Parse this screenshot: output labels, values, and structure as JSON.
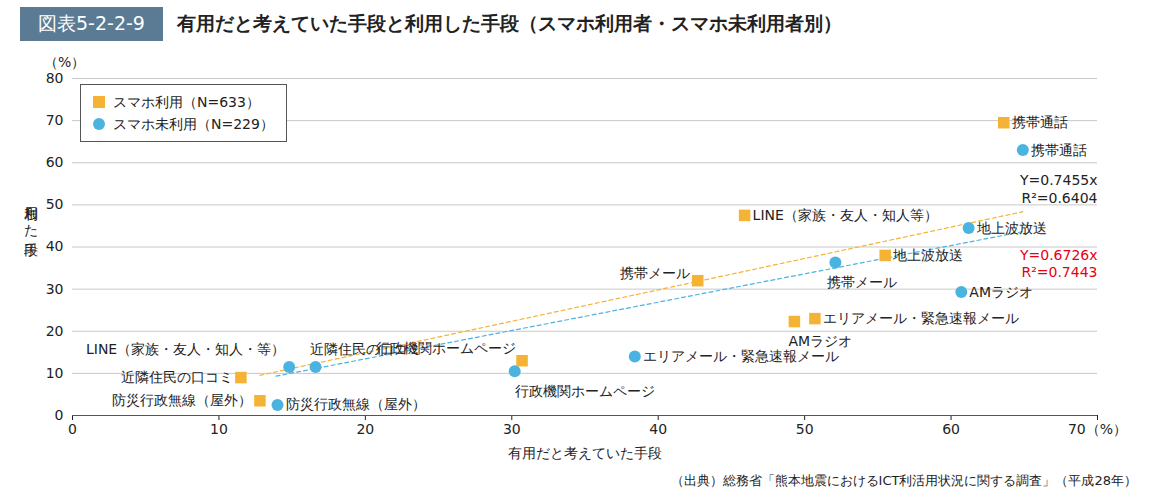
{
  "chart_data": {
    "type": "scatter",
    "figure_number": "図表5-2-2-9",
    "title": "有用だと考えていた手段と利用した手段（スマホ利用者・スマホ未利用者別）",
    "source": "（出典）総務省「熊本地震におけるICT利活用状況に関する調査」（平成28年）",
    "x_label": "有用だと考えていた手段",
    "y_label": "利用した手段",
    "y_unit_label": "（%）",
    "xlim": [
      0,
      70
    ],
    "xticks": [
      0,
      10,
      20,
      30,
      40,
      50,
      60,
      {
        "value": 70,
        "label": "70（%）"
      }
    ],
    "ylim": [
      0,
      80
    ],
    "yticks": [
      0,
      10,
      20,
      30,
      40,
      50,
      60,
      70,
      80
    ],
    "grid": true,
    "legend": "top-left",
    "series": [
      {
        "name": "スマホ利用（N=633）",
        "color": "#f5b335",
        "marker": "square",
        "labels": [
          "携帯通話",
          "LINE（家族・友人・知人等）",
          "地上波放送",
          "携帯メール",
          "エリアメール・緊急速報メール",
          "AMラジオ",
          "行政機関ホームページ",
          "近隣住民の口コミ",
          "防災行政無線（屋外）"
        ],
        "x": [
          63.6,
          45.9,
          55.5,
          42.7,
          50.7,
          49.3,
          30.7,
          11.5,
          12.8
        ],
        "values": [
          69.5,
          47.5,
          38.0,
          32.0,
          23.0,
          22.3,
          13.0,
          9.0,
          3.5
        ],
        "trendline": {
          "slope": 0.7455,
          "x_range": [
            12.8,
            64.9
          ],
          "equation": "Y=0.7455x",
          "r2": "R²=0.6404",
          "line_style": "dashed"
        }
      },
      {
        "name": "スマホ未利用（N=229）",
        "color": "#4bb3e0",
        "marker": "circle",
        "labels": [
          "携帯通話",
          "地上波放送",
          "携帯メール",
          "AMラジオ",
          "エリアメール・緊急速報メール",
          "行政機関ホームページ",
          "LINE（家族・友人・知人・等）",
          "近隣住民の口コミ",
          "防災行政無線（屋外）"
        ],
        "x": [
          64.9,
          61.2,
          52.1,
          60.7,
          38.4,
          30.2,
          14.8,
          16.6,
          14.0
        ],
        "values": [
          63.0,
          44.5,
          36.3,
          29.3,
          14.0,
          10.5,
          11.5,
          11.5,
          2.5
        ],
        "trendline": {
          "slope": 0.6726,
          "x_range": [
            13.9,
            64.9
          ],
          "equation": "Y=0.6726x",
          "r2": "R²=0.7443",
          "line_style": "dashed"
        }
      }
    ]
  }
}
